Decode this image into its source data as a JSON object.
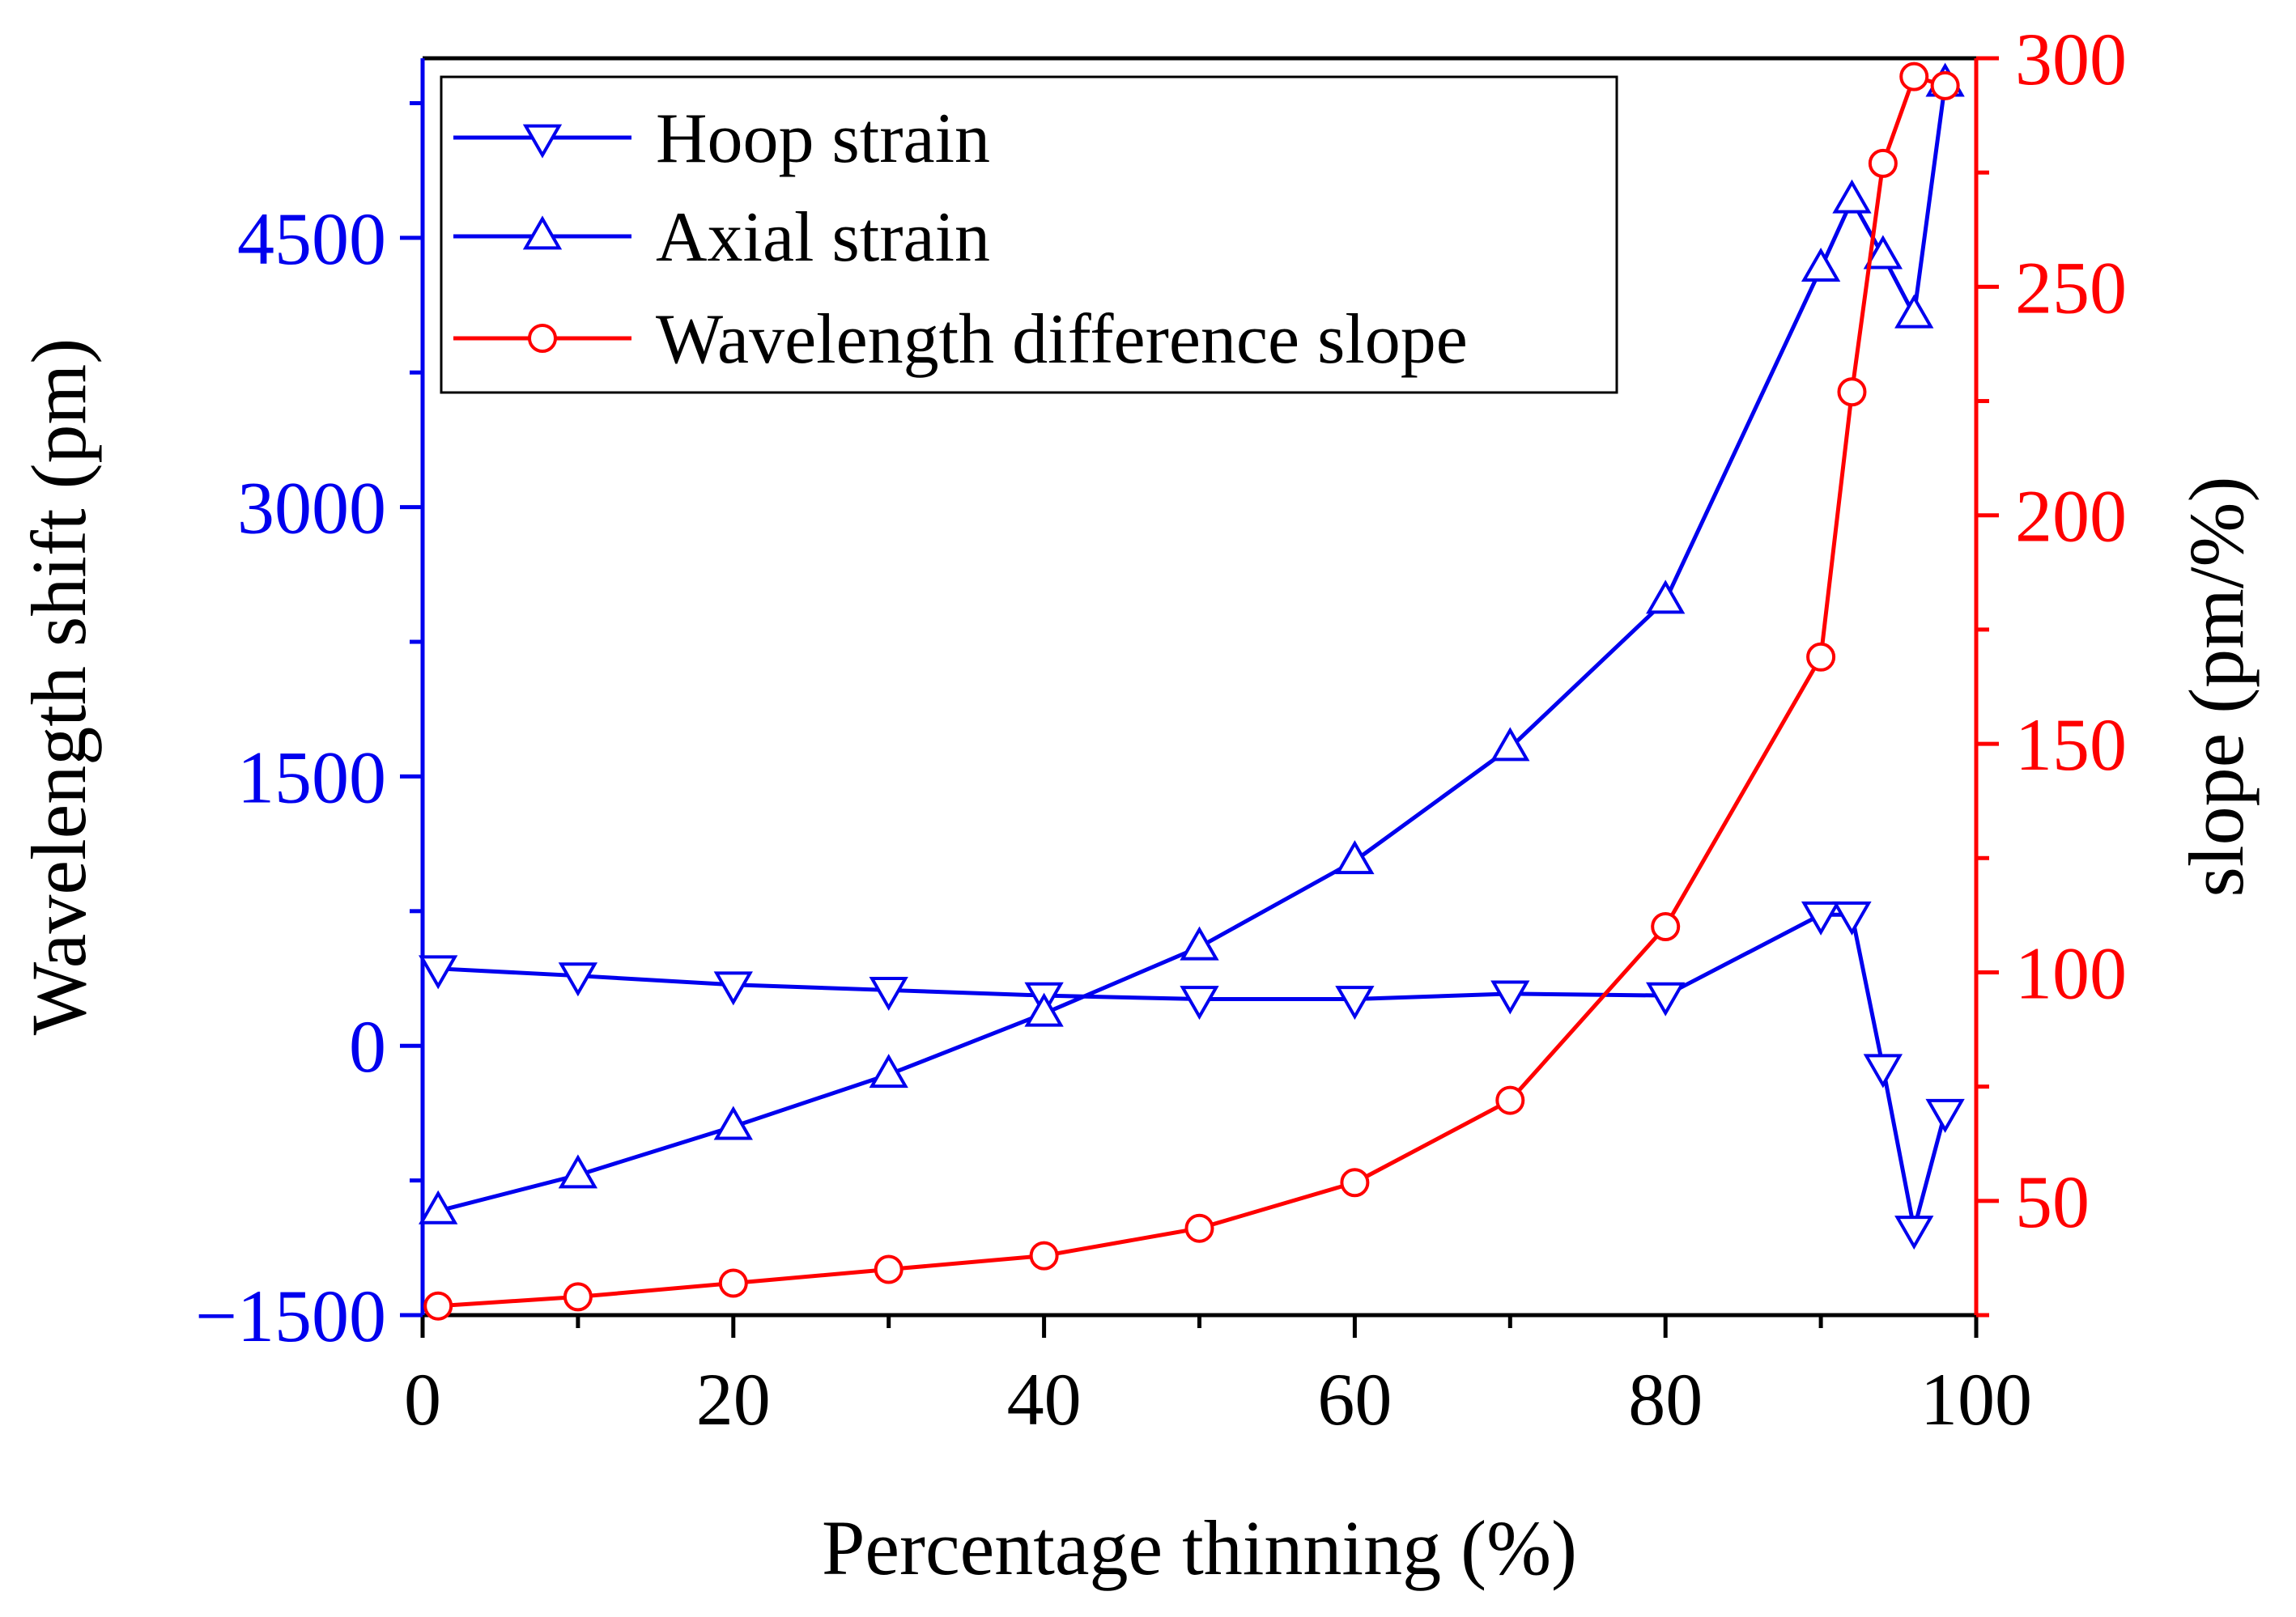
{
  "chart_data": {
    "type": "line",
    "x_label": "Percentage thinning (%)",
    "y_left_label": "Wavelength shift (pm)",
    "y_right_label": "slope (pm/%)",
    "x_range": [
      0,
      100
    ],
    "x_ticks": [
      0,
      20,
      40,
      60,
      80,
      100
    ],
    "y_left_range": [
      -1500,
      5500
    ],
    "y_left_ticks": [
      -1500,
      0,
      1500,
      3000,
      4500
    ],
    "y_left_tick_labels": [
      "−1500",
      "0",
      "1500",
      "3000",
      "4500"
    ],
    "y_right_range": [
      25,
      300
    ],
    "y_right_ticks": [
      50,
      100,
      150,
      200,
      250,
      300
    ],
    "left_axis_color": "#0000ee",
    "right_axis_color": "#ff0000",
    "series": [
      {
        "name": "Hoop strain",
        "axis": "left",
        "color": "#0000ee",
        "marker": "triangle-down",
        "x": [
          1,
          10,
          20,
          30,
          40,
          50,
          60,
          70,
          80,
          90,
          92,
          94,
          96,
          98
        ],
        "y": [
          430,
          390,
          340,
          310,
          280,
          260,
          260,
          290,
          280,
          730,
          730,
          -120,
          -1020,
          -370
        ]
      },
      {
        "name": "Axial strain",
        "axis": "left",
        "color": "#0000ee",
        "marker": "triangle-up",
        "x": [
          1,
          10,
          20,
          30,
          40,
          50,
          60,
          70,
          80,
          90,
          92,
          94,
          96,
          98
        ],
        "y": [
          -920,
          -720,
          -450,
          -160,
          180,
          550,
          1030,
          1660,
          2480,
          4330,
          4710,
          4400,
          4070,
          5360
        ]
      },
      {
        "name": "Wavelength difference slope",
        "axis": "right",
        "color": "#ff0000",
        "marker": "circle",
        "x": [
          1,
          10,
          20,
          30,
          40,
          50,
          60,
          70,
          80,
          90,
          92,
          94,
          96,
          98
        ],
        "y": [
          27,
          29,
          32,
          35,
          38,
          44,
          54,
          72,
          110,
          169,
          227,
          277,
          296,
          294
        ]
      }
    ]
  }
}
